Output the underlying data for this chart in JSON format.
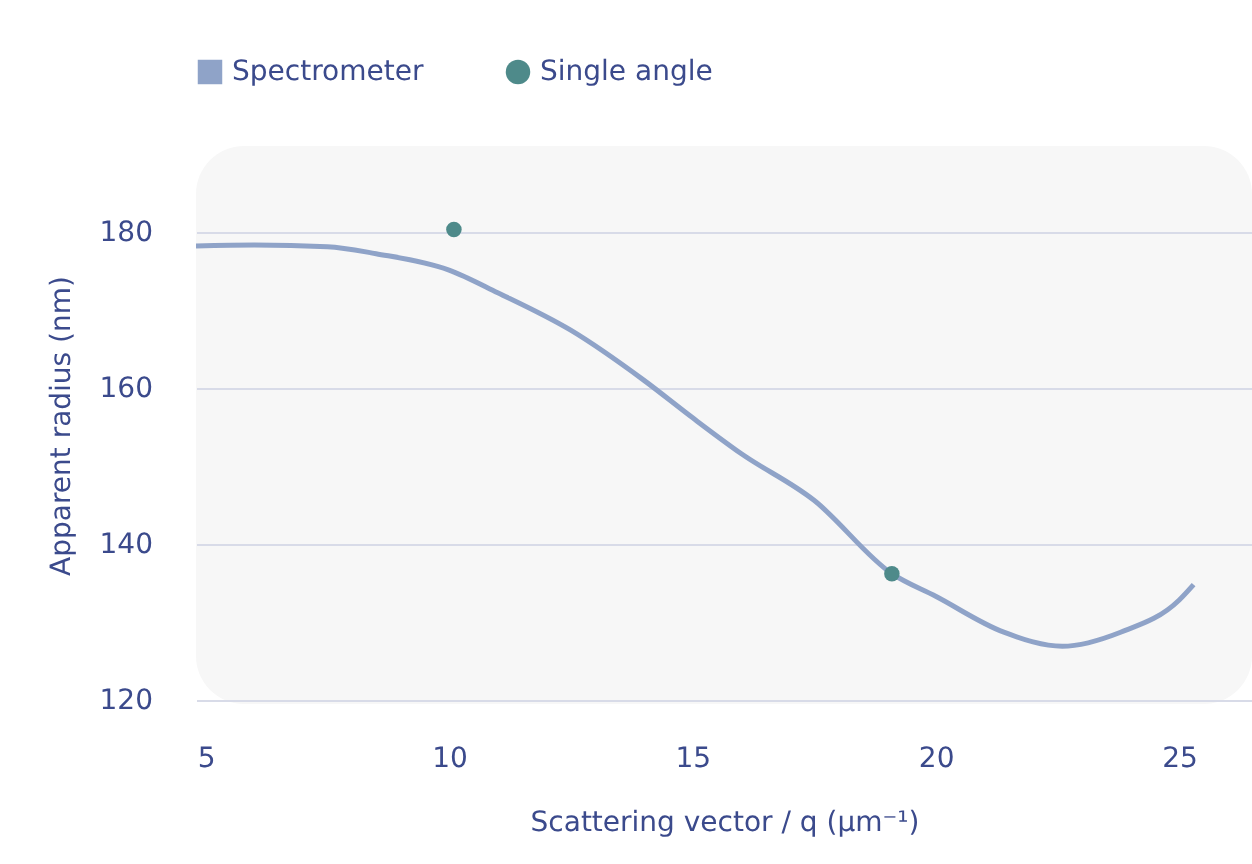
{
  "chart_data": {
    "type": "line",
    "xlabel": "Scattering vector / q (µm⁻¹)",
    "ylabel": "Apparent radius (nm)",
    "xlim": [
      4.8,
      26.5
    ],
    "ylim": [
      119.5,
      191
    ],
    "xticks": [
      5,
      10,
      15,
      20,
      25
    ],
    "yticks": [
      120,
      140,
      160,
      180
    ],
    "grid": "y",
    "legend": "top",
    "series": [
      {
        "name": "Spectrometer",
        "color": "#8fa3c8",
        "x": [
          4.8,
          6,
          7.5,
          8.5,
          10,
          11,
          12.5,
          14,
          15,
          16,
          17.5,
          19.1,
          20,
          21.4,
          22.6,
          23.8,
          25,
          25.3
        ],
        "values": [
          178.2,
          178.3,
          178.1,
          177.2,
          175.1,
          172.2,
          167.4,
          161,
          156.2,
          151.6,
          145.6,
          136.2,
          133.3,
          128.7,
          126.9,
          128.7,
          132.8,
          134.8
        ]
      },
      {
        "name": "Single angle",
        "type": "scatter",
        "color": "#4e8a8a",
        "x": [
          10.1,
          19.1
        ],
        "values": [
          180.3,
          136.2
        ]
      }
    ]
  }
}
